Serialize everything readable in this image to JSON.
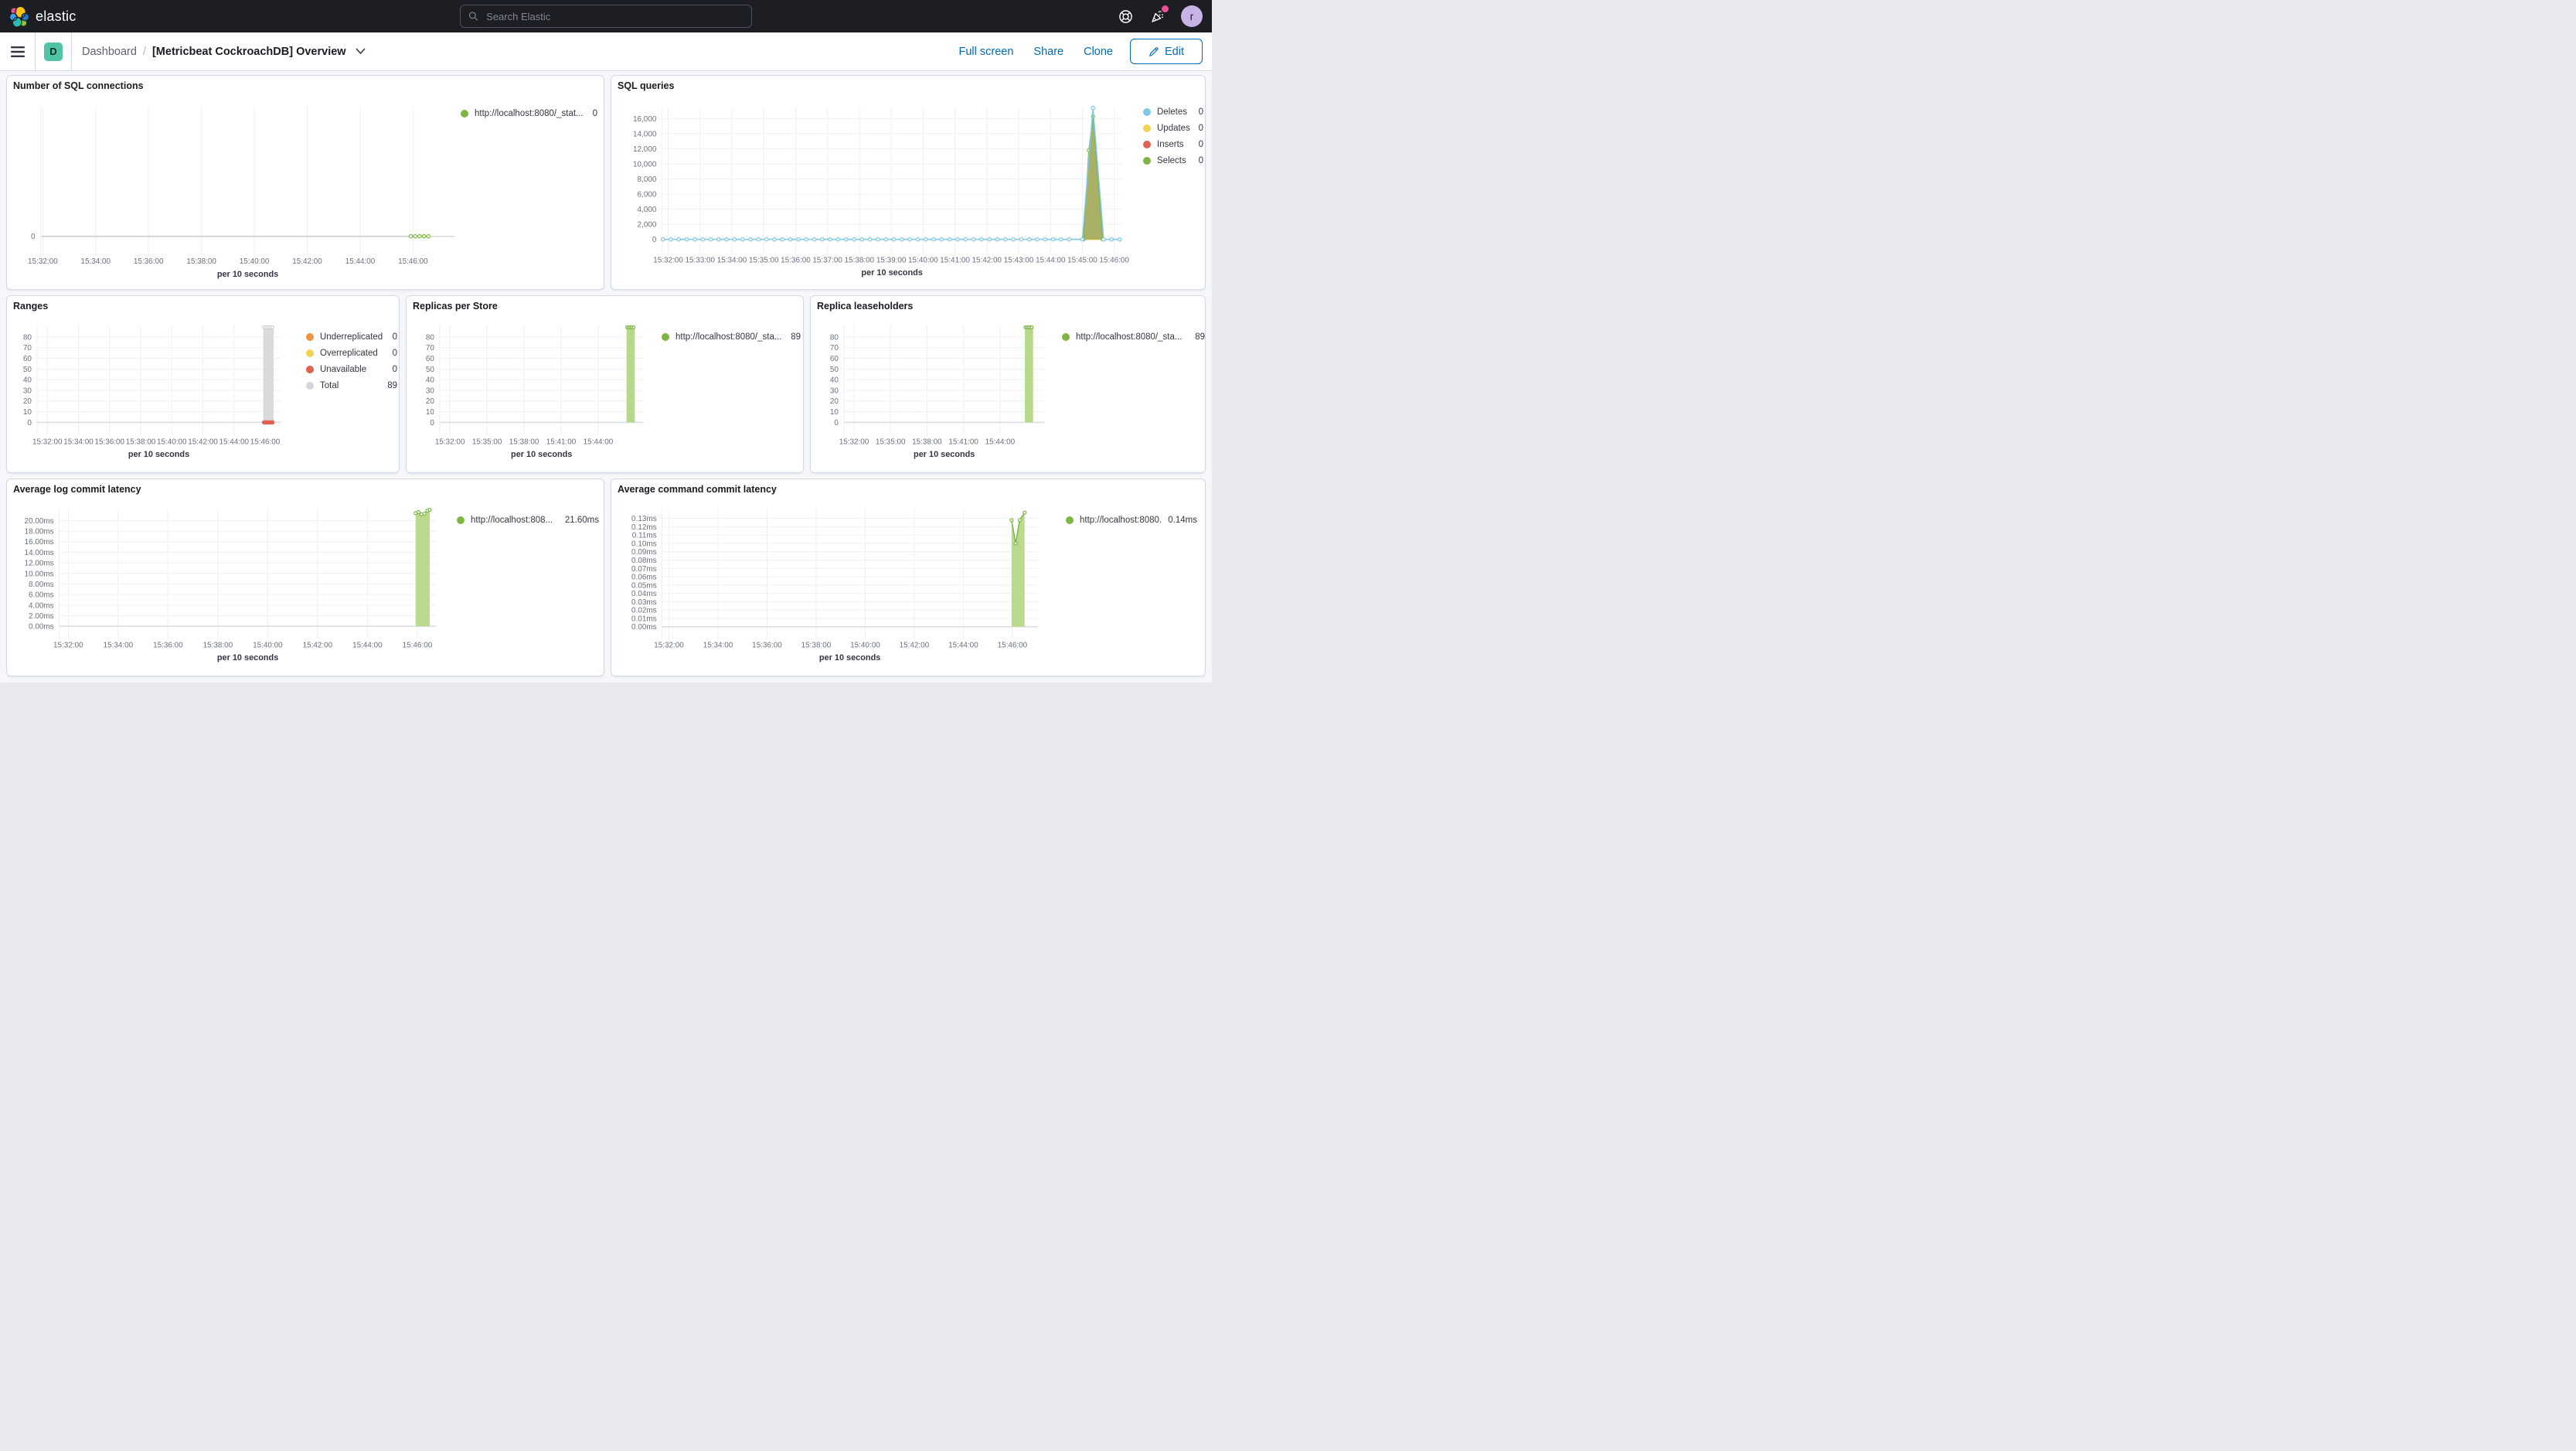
{
  "nav": {
    "logo_text": "elastic",
    "search_placeholder": "Search Elastic",
    "avatar_initial": "r"
  },
  "breadcrumb_bar": {
    "space_initial": "D",
    "breadcrumb_root": "Dashboard",
    "breadcrumb_sep": "/",
    "title": "[Metricbeat CockroachDB] Overview",
    "actions": [
      "Full screen",
      "Share",
      "Clone"
    ],
    "edit_label": "Edit"
  },
  "colors": {
    "nav_bg": "#1d1e24",
    "primary_blue": "#006bb4",
    "space_badge_teal": "#4ec3a6",
    "notification_pink": "#f04e98",
    "avatar_purple": "#c9b2e6",
    "panel_border": "#d3dae6",
    "page_bg": "#f5f7fa",
    "series_blue": "#7dc9e8",
    "series_yellow": "#f0d44f",
    "series_red": "#e0614e",
    "series_green": "#7db742",
    "series_green_fill": "#b6d888",
    "series_gray": "#d4d4d4",
    "series_orange": "#ec9440"
  },
  "charts": [
    {
      "id": "sql-connections",
      "type": "line",
      "title": "Number of SQL connections",
      "x_label": "per 10 seconds",
      "x_range": [
        "15:31:55",
        "15:47:35"
      ],
      "x_ticks": [
        "15:32:00",
        "15:34:00",
        "15:36:00",
        "15:38:00",
        "15:40:00",
        "15:42:00",
        "15:44:00",
        "15:46:00"
      ],
      "y_range": [
        -0.5,
        4.5
      ],
      "y_ticks": [
        {
          "v": 0,
          "label": "0"
        }
      ],
      "legend": [
        {
          "label": "http://localhost:8080/_stat...",
          "value": "0",
          "color": "#7db742"
        }
      ],
      "series": [
        {
          "name": "connections-history",
          "type": "line",
          "color": "#d4d4d4",
          "width": 2,
          "pts": [
            [
              "15:31:58",
              0
            ],
            [
              "15:45:55",
              0
            ]
          ]
        },
        {
          "name": "http://localhost:8080/_stat...",
          "type": "line",
          "color": "#7db742",
          "width": 1.5,
          "markers": true,
          "marker_r": 2.2,
          "segments": [
            {
              "flat": {
                "start": "15:45:55",
                "end": "15:46:40",
                "step": 10,
                "v": 0
              }
            }
          ]
        }
      ]
    },
    {
      "id": "sql-queries",
      "type": "line",
      "title": "SQL queries",
      "x_label": "per 10 seconds",
      "x_range": [
        "15:31:48",
        "15:46:15"
      ],
      "x_ticks": [
        "15:32:00",
        "15:33:00",
        "15:34:00",
        "15:35:00",
        "15:36:00",
        "15:37:00",
        "15:38:00",
        "15:39:00",
        "15:40:00",
        "15:41:00",
        "15:42:00",
        "15:43:00",
        "15:44:00",
        "15:45:00",
        "15:46:00"
      ],
      "y_range": [
        -1300,
        17400
      ],
      "y_ticks": [
        {
          "v": 0,
          "label": "0"
        },
        {
          "v": 2000,
          "label": "2,000"
        },
        {
          "v": 4000,
          "label": "4,000"
        },
        {
          "v": 6000,
          "label": "6,000"
        },
        {
          "v": 8000,
          "label": "8,000"
        },
        {
          "v": 10000,
          "label": "10,000"
        },
        {
          "v": 12000,
          "label": "12,000"
        },
        {
          "v": 14000,
          "label": "14,000"
        },
        {
          "v": 16000,
          "label": "16,000"
        }
      ],
      "legend": [
        {
          "label": "Deletes",
          "value": "0",
          "color": "#7dc9e8"
        },
        {
          "label": "Updates",
          "value": "0",
          "color": "#f0d44f"
        },
        {
          "label": "Inserts",
          "value": "0",
          "color": "#e0614e"
        },
        {
          "label": "Selects",
          "value": "0",
          "color": "#7db742"
        }
      ],
      "series": [
        {
          "name": "Updates",
          "type": "line",
          "color": "#f0d44f",
          "width": 1.5,
          "pts": [
            [
              "15:31:50",
              0
            ],
            [
              "15:46:12",
              0
            ]
          ]
        },
        {
          "name": "Inserts",
          "type": "line",
          "color": "#e0614e",
          "width": 1,
          "fill": "#e0614e",
          "fillOpacity": 0.55,
          "pts": [
            [
              "15:45:00",
              0
            ],
            [
              "15:45:20",
              17000
            ],
            [
              "15:45:40",
              0
            ]
          ]
        },
        {
          "name": "Selects",
          "type": "line",
          "color": "#7db742",
          "width": 1.2,
          "markers": true,
          "marker_r": 2,
          "fill": "#7db742",
          "fillOpacity": 0.6,
          "pts": [
            [
              "15:45:02",
              0
            ],
            [
              "15:45:12",
              11800
            ],
            [
              "15:45:20",
              16300
            ],
            [
              "15:45:38",
              0
            ]
          ]
        },
        {
          "name": "Deletes",
          "type": "line",
          "color": "#7dc9e8",
          "width": 1.5,
          "markers": true,
          "marker_r": 2.2,
          "segments": [
            {
              "flat": {
                "start": "15:31:50",
                "end": "15:44:45",
                "step": 15,
                "v": 0
              }
            },
            {
              "pts": [
                [
                  "15:45:00",
                  0
                ],
                [
                  "15:45:20",
                  17400
                ],
                [
                  "15:45:40",
                  0
                ]
              ]
            },
            {
              "flat": {
                "start": "15:45:55",
                "end": "15:46:12",
                "step": 15,
                "v": 0
              }
            }
          ]
        }
      ]
    },
    {
      "id": "ranges",
      "type": "bar",
      "title": "Ranges",
      "x_label": "per 10 seconds",
      "x_range": [
        "15:31:20",
        "15:47:00"
      ],
      "x_ticks": [
        "15:32:00",
        "15:34:00",
        "15:36:00",
        "15:38:00",
        "15:40:00",
        "15:42:00",
        "15:44:00",
        "15:46:00"
      ],
      "y_range": [
        -8,
        91
      ],
      "y_ticks": [
        {
          "v": 0,
          "label": "0"
        },
        {
          "v": 10,
          "label": "10"
        },
        {
          "v": 20,
          "label": "20"
        },
        {
          "v": 30,
          "label": "30"
        },
        {
          "v": 40,
          "label": "40"
        },
        {
          "v": 50,
          "label": "50"
        },
        {
          "v": 60,
          "label": "60"
        },
        {
          "v": 70,
          "label": "70"
        },
        {
          "v": 80,
          "label": "80"
        }
      ],
      "legend": [
        {
          "label": "Underreplicated",
          "value": "0",
          "color": "#ec9440"
        },
        {
          "label": "Overreplicated",
          "value": "0",
          "color": "#f0d44f"
        },
        {
          "label": "Unavailable",
          "value": "0",
          "color": "#e0614e"
        },
        {
          "label": "Total",
          "value": "89",
          "color": "#d3d6db"
        }
      ],
      "series": [
        {
          "name": "Total",
          "type": "bar",
          "x0": "15:45:53",
          "x1": "15:46:33",
          "v": 89,
          "color": "#dadada"
        },
        {
          "name": "Total-points",
          "type": "markers",
          "color": "#c9cdd5",
          "fill": "#ffffff",
          "r": 2,
          "pts": [
            [
              "15:45:56",
              89
            ],
            [
              "15:46:04",
              89
            ],
            [
              "15:46:12",
              89
            ],
            [
              "15:46:20",
              89
            ],
            [
              "15:46:28",
              89
            ]
          ]
        },
        {
          "name": "Unavailable-points",
          "type": "markers",
          "color": "#e0614e",
          "fill": "#e0614e",
          "r": 2.2,
          "pts": [
            [
              "15:45:56",
              0
            ],
            [
              "15:46:04",
              0
            ],
            [
              "15:46:12",
              0
            ],
            [
              "15:46:20",
              0
            ],
            [
              "15:46:28",
              0
            ]
          ]
        }
      ]
    },
    {
      "id": "replicas-per-store",
      "type": "bar",
      "title": "Replicas per Store",
      "x_label": "per 10 seconds",
      "x_range": [
        "15:31:10",
        "15:47:40"
      ],
      "x_ticks": [
        "15:32:00",
        "15:35:00",
        "15:38:00",
        "15:41:00",
        "15:44:00"
      ],
      "y_range": [
        -8,
        91
      ],
      "y_ticks": [
        {
          "v": 0,
          "label": "0"
        },
        {
          "v": 10,
          "label": "10"
        },
        {
          "v": 20,
          "label": "20"
        },
        {
          "v": 30,
          "label": "30"
        },
        {
          "v": 40,
          "label": "40"
        },
        {
          "v": 50,
          "label": "50"
        },
        {
          "v": 60,
          "label": "60"
        },
        {
          "v": 70,
          "label": "70"
        },
        {
          "v": 80,
          "label": "80"
        }
      ],
      "legend": [
        {
          "label": "http://localhost:8080/_sta...",
          "value": "89",
          "color": "#7db742"
        }
      ],
      "series": [
        {
          "name": "replicas",
          "type": "bar",
          "x0": "15:46:18",
          "x1": "15:46:58",
          "v": 89,
          "color": "#b6d888"
        },
        {
          "name": "replicas-points",
          "type": "markers",
          "color": "#7db742",
          "fill": "#ffffff",
          "r": 1.8,
          "pts": [
            [
              "15:46:20",
              89
            ],
            [
              "15:46:28",
              89
            ],
            [
              "15:46:36",
              89
            ],
            [
              "15:46:44",
              89
            ],
            [
              "15:46:52",
              89
            ]
          ]
        }
      ]
    },
    {
      "id": "replica-leaseholders",
      "type": "bar",
      "title": "Replica leaseholders",
      "x_label": "per 10 seconds",
      "x_range": [
        "15:31:10",
        "15:47:40"
      ],
      "x_ticks": [
        "15:32:00",
        "15:35:00",
        "15:38:00",
        "15:41:00",
        "15:44:00"
      ],
      "y_range": [
        -8,
        91
      ],
      "y_ticks": [
        {
          "v": 0,
          "label": "0"
        },
        {
          "v": 10,
          "label": "10"
        },
        {
          "v": 20,
          "label": "20"
        },
        {
          "v": 30,
          "label": "30"
        },
        {
          "v": 40,
          "label": "40"
        },
        {
          "v": 50,
          "label": "50"
        },
        {
          "v": 60,
          "label": "60"
        },
        {
          "v": 70,
          "label": "70"
        },
        {
          "v": 80,
          "label": "80"
        }
      ],
      "legend": [
        {
          "label": "http://localhost:8080/_sta...",
          "value": "89",
          "color": "#7db742"
        }
      ],
      "series": [
        {
          "name": "leaseholders",
          "type": "bar",
          "x0": "15:46:03",
          "x1": "15:46:43",
          "v": 89,
          "color": "#b6d888"
        },
        {
          "name": "leaseholders-points",
          "type": "markers",
          "color": "#7db742",
          "fill": "#ffffff",
          "r": 1.8,
          "pts": [
            [
              "15:46:05",
              89
            ],
            [
              "15:46:13",
              89
            ],
            [
              "15:46:21",
              89
            ],
            [
              "15:46:29",
              89
            ],
            [
              "15:46:37",
              89
            ]
          ]
        }
      ]
    },
    {
      "id": "avg-log-commit-latency",
      "type": "area",
      "title": "Average log commit latency",
      "x_label": "per 10 seconds",
      "x_range": [
        "15:31:38",
        "15:46:46"
      ],
      "x_ticks": [
        "15:32:00",
        "15:34:00",
        "15:36:00",
        "15:38:00",
        "15:40:00",
        "15:42:00",
        "15:44:00",
        "15:46:00"
      ],
      "y_range": [
        -1.5,
        22.3
      ],
      "y_ticks": [
        {
          "v": 0,
          "label": "0.00ms"
        },
        {
          "v": 2,
          "label": "2.00ms"
        },
        {
          "v": 4,
          "label": "4.00ms"
        },
        {
          "v": 6,
          "label": "6.00ms"
        },
        {
          "v": 8,
          "label": "8.00ms"
        },
        {
          "v": 10,
          "label": "10.00ms"
        },
        {
          "v": 12,
          "label": "12.00ms"
        },
        {
          "v": 14,
          "label": "14.00ms"
        },
        {
          "v": 16,
          "label": "16.00ms"
        },
        {
          "v": 18,
          "label": "18.00ms"
        },
        {
          "v": 20,
          "label": "20.00ms"
        }
      ],
      "legend": [
        {
          "label": "http://localhost:808...",
          "value": "21.60ms",
          "color": "#7db742"
        }
      ],
      "series": [
        {
          "name": "log-commit-latency",
          "type": "line",
          "color": "#7db742",
          "width": 1.5,
          "markers": true,
          "marker_r": 2,
          "fill": "#b6d888",
          "fillOpacity": 0.95,
          "pts": [
            [
              "15:45:56",
              21.4
            ],
            [
              "15:46:03",
              21.6
            ],
            [
              "15:46:10",
              21.2
            ],
            [
              "15:46:17",
              21.3
            ],
            [
              "15:46:24",
              21.9
            ],
            [
              "15:46:30",
              22.05
            ]
          ]
        }
      ]
    },
    {
      "id": "avg-command-commit-latency",
      "type": "area",
      "title": "Average command commit latency",
      "x_label": "per 10 seconds",
      "x_range": [
        "15:31:43",
        "15:47:02"
      ],
      "x_ticks": [
        "15:32:00",
        "15:34:00",
        "15:36:00",
        "15:38:00",
        "15:40:00",
        "15:42:00",
        "15:44:00",
        "15:46:00"
      ],
      "y_range": [
        -0.009,
        0.142
      ],
      "y_ticks": [
        {
          "v": 0,
          "label": "0.00ms"
        },
        {
          "v": 0.01,
          "label": "0.01ms"
        },
        {
          "v": 0.02,
          "label": "0.02ms"
        },
        {
          "v": 0.03,
          "label": "0.03ms"
        },
        {
          "v": 0.04,
          "label": "0.04ms"
        },
        {
          "v": 0.05,
          "label": "0.05ms"
        },
        {
          "v": 0.06,
          "label": "0.06ms"
        },
        {
          "v": 0.07,
          "label": "0.07ms"
        },
        {
          "v": 0.08,
          "label": "0.08ms"
        },
        {
          "v": 0.09,
          "label": "0.09ms"
        },
        {
          "v": 0.1,
          "label": "0.10ms"
        },
        {
          "v": 0.11,
          "label": "0.11ms"
        },
        {
          "v": 0.12,
          "label": "0.12ms"
        },
        {
          "v": 0.13,
          "label": "0.13ms"
        }
      ],
      "legend": [
        {
          "label": "http://localhost:8080...",
          "value": "0.14ms",
          "color": "#7db742"
        }
      ],
      "series": [
        {
          "name": "command-commit-latency",
          "type": "line",
          "color": "#7db742",
          "width": 1.5,
          "markers": true,
          "marker_r": 2,
          "fill": "#b6d888",
          "fillOpacity": 0.95,
          "pts": [
            [
              "15:45:58",
              0.128
            ],
            [
              "15:46:08",
              0.1
            ],
            [
              "15:46:18",
              0.128
            ],
            [
              "15:46:30",
              0.137
            ]
          ]
        }
      ]
    }
  ]
}
